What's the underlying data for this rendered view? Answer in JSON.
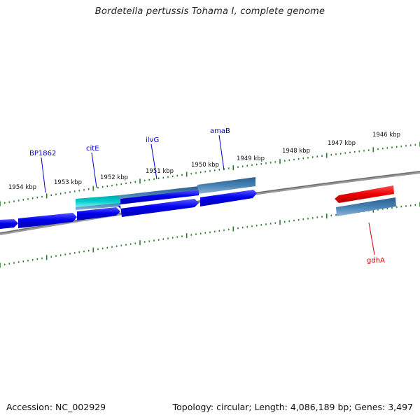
{
  "title": "Bordetella pertussis Tohama I, complete genome",
  "footer": {
    "accession": "Accession: NC_002929",
    "summary": "Topology: circular; Length: 4,086,189 bp; Genes: 3,497"
  },
  "scale_labels": [
    "1954 kbp",
    "1953 kbp",
    "1952 kbp",
    "1951 kbp",
    "1950 kbp",
    "1949 kbp",
    "1948 kbp",
    "1947 kbp",
    "1946 kbp"
  ],
  "gene_labels": [
    {
      "name": "BP1862",
      "color": "#0000cc"
    },
    {
      "name": "citE",
      "color": "#0000cc"
    },
    {
      "name": "ilvG",
      "color": "#0000cc"
    },
    {
      "name": "amaB",
      "color": "#0000cc"
    },
    {
      "name": "gdhA",
      "color": "#dd0000"
    }
  ],
  "colors": {
    "cds_blue": "#0000ee",
    "cds_steel": "#4682b4",
    "cds_cyan": "#00c8c8",
    "cds_red": "#ee0000",
    "backbone": "#888888",
    "tick": "#2e7d2e"
  }
}
